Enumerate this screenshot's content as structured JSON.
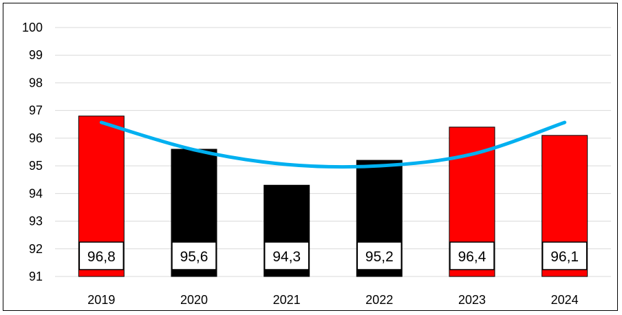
{
  "chart_data": {
    "type": "bar",
    "title": "",
    "xlabel": "",
    "ylabel": "",
    "categories": [
      "2019",
      "2020",
      "2021",
      "2022",
      "2023",
      "2024"
    ],
    "values": [
      96.8,
      95.6,
      94.3,
      95.2,
      96.4,
      96.1
    ],
    "data_labels": [
      "96,8",
      "95,6",
      "94,3",
      "95,2",
      "96,4",
      "96,1"
    ],
    "bar_colors": [
      "#ff0000",
      "#000000",
      "#000000",
      "#000000",
      "#ff0000",
      "#ff0000"
    ],
    "ylim": [
      91,
      100
    ],
    "y_ticks": [
      "91",
      "92",
      "93",
      "94",
      "95",
      "96",
      "97",
      "98",
      "99",
      "100"
    ],
    "grid": true,
    "trendline": {
      "type": "polynomial",
      "color": "#00b0f0",
      "values": [
        96.57,
        95.58,
        95.05,
        95.0,
        95.42,
        96.57
      ]
    }
  }
}
